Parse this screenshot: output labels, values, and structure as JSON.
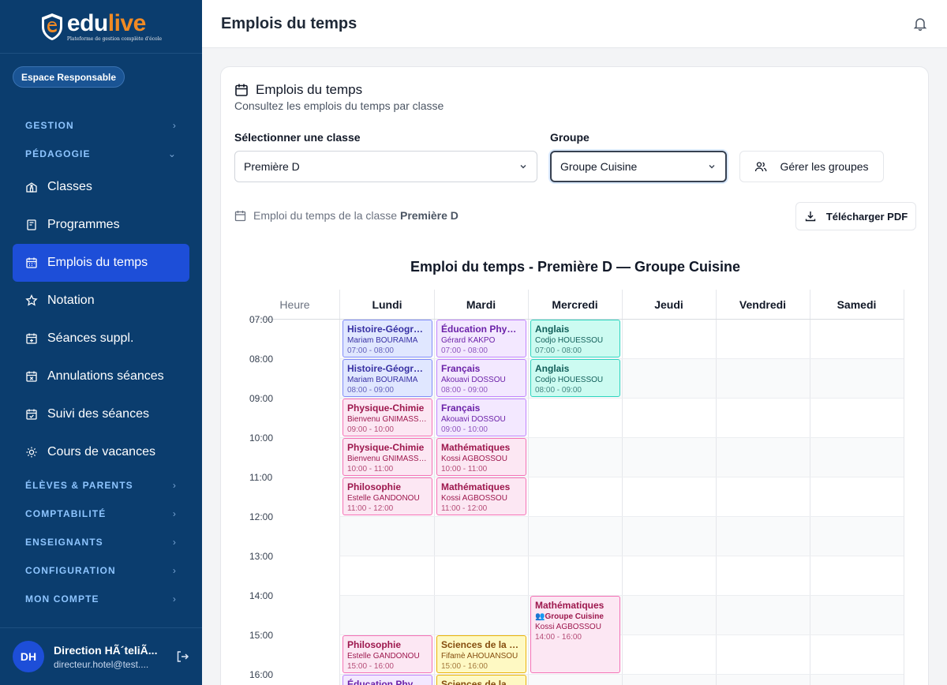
{
  "app": {
    "logo_main": "edu",
    "logo_accent": "live",
    "logo_tagline": "Plateforme de gestion complète d'école",
    "space_badge": "Espace Responsable"
  },
  "sidebar": {
    "sections": [
      {
        "label": "GESTION",
        "items": []
      },
      {
        "label": "PÉDAGOGIE",
        "expanded": true,
        "items": [
          {
            "label": "Classes",
            "icon": "school-icon"
          },
          {
            "label": "Programmes",
            "icon": "book-icon"
          },
          {
            "label": "Emplois du temps",
            "icon": "calendar-icon",
            "active": true
          },
          {
            "label": "Notation",
            "icon": "star-icon"
          },
          {
            "label": "Séances suppl.",
            "icon": "calendar-plus-icon"
          },
          {
            "label": "Annulations séances",
            "icon": "calendar-x-icon"
          },
          {
            "label": "Suivi des séances",
            "icon": "calendar-check-icon"
          },
          {
            "label": "Cours de vacances",
            "icon": "sun-icon"
          }
        ]
      },
      {
        "label": "ÉLÈVES & PARENTS",
        "items": []
      },
      {
        "label": "COMPTABILITÉ",
        "items": []
      },
      {
        "label": "ENSEIGNANTS",
        "items": []
      },
      {
        "label": "CONFIGURATION",
        "items": []
      },
      {
        "label": "MON COMPTE",
        "items": []
      }
    ],
    "user": {
      "initials": "DH",
      "name": "Direction HÃ´teliÃ...",
      "email": "directeur.hotel@test...."
    }
  },
  "header": {
    "title": "Emplois du temps"
  },
  "card": {
    "title": "Emplois du temps",
    "subtitle": "Consultez les emplois du temps par classe",
    "class_label": "Sélectionner une classe",
    "class_value": "Première D",
    "group_label": "Groupe",
    "group_value": "Groupe Cuisine",
    "manage_groups": "Gérer les groupes",
    "caption_prefix": "Emploi du temps de la classe",
    "caption_class": "Première D",
    "download_pdf": "Télécharger PDF",
    "timetable_title": "Emploi du temps - Première D — Groupe Cuisine"
  },
  "timetable": {
    "hour_header": "Heure",
    "days": [
      "Lundi",
      "Mardi",
      "Mercredi",
      "Jeudi",
      "Vendredi",
      "Samedi"
    ],
    "hours": [
      "07:00",
      "08:00",
      "09:00",
      "10:00",
      "11:00",
      "12:00",
      "13:00",
      "14:00",
      "15:00",
      "16:00"
    ],
    "start_hour": 7,
    "colors": {
      "blue": {
        "bg": "#e0e7ff",
        "border": "#818cf8",
        "text": "#3730a3"
      },
      "purple": {
        "bg": "#f3e8ff",
        "border": "#c084fc",
        "text": "#6b21a8"
      },
      "teal": {
        "bg": "#ccfbf1",
        "border": "#2dd4bf",
        "text": "#115e59"
      },
      "pink": {
        "bg": "#fce7f3",
        "border": "#f472b6",
        "text": "#9d174d"
      },
      "yellow": {
        "bg": "#fef9c3",
        "border": "#eab308",
        "text": "#854d0e"
      }
    },
    "events": [
      {
        "day": 0,
        "start": 7,
        "end": 8,
        "subject": "Histoire-Géographie",
        "teacher": "Mariam BOURAIMA",
        "time": "07:00 - 08:00",
        "color": "blue"
      },
      {
        "day": 0,
        "start": 8,
        "end": 9,
        "subject": "Histoire-Géographie",
        "teacher": "Mariam BOURAIMA",
        "time": "08:00 - 09:00",
        "color": "blue"
      },
      {
        "day": 0,
        "start": 9,
        "end": 10,
        "subject": "Physique-Chimie",
        "teacher": "Bienvenu GNIMASSOU",
        "time": "09:00 - 10:00",
        "color": "pink"
      },
      {
        "day": 0,
        "start": 10,
        "end": 11,
        "subject": "Physique-Chimie",
        "teacher": "Bienvenu GNIMASSOU",
        "time": "10:00 - 11:00",
        "color": "pink"
      },
      {
        "day": 0,
        "start": 11,
        "end": 12,
        "subject": "Philosophie",
        "teacher": "Estelle GANDONOU",
        "time": "11:00 - 12:00",
        "color": "pink"
      },
      {
        "day": 0,
        "start": 15,
        "end": 16,
        "subject": "Philosophie",
        "teacher": "Estelle GANDONOU",
        "time": "15:00 - 16:00",
        "color": "pink"
      },
      {
        "day": 0,
        "start": 16,
        "end": 17,
        "subject": "Éducation Physique",
        "teacher": "",
        "time": "",
        "color": "purple"
      },
      {
        "day": 1,
        "start": 7,
        "end": 8,
        "subject": "Éducation Physique",
        "teacher": "Gérard KAKPO",
        "time": "07:00 - 08:00",
        "color": "purple"
      },
      {
        "day": 1,
        "start": 8,
        "end": 9,
        "subject": "Français",
        "teacher": "Akouavi DOSSOU",
        "time": "08:00 - 09:00",
        "color": "purple"
      },
      {
        "day": 1,
        "start": 9,
        "end": 10,
        "subject": "Français",
        "teacher": "Akouavi DOSSOU",
        "time": "09:00 - 10:00",
        "color": "purple"
      },
      {
        "day": 1,
        "start": 10,
        "end": 11,
        "subject": "Mathématiques",
        "teacher": "Kossi AGBOSSOU",
        "time": "10:00 - 11:00",
        "color": "pink"
      },
      {
        "day": 1,
        "start": 11,
        "end": 12,
        "subject": "Mathématiques",
        "teacher": "Kossi AGBOSSOU",
        "time": "11:00 - 12:00",
        "color": "pink"
      },
      {
        "day": 1,
        "start": 15,
        "end": 16,
        "subject": "Sciences de la Vie et de la Terre",
        "teacher": "Fifamè AHOUANSOU",
        "time": "15:00 - 16:00",
        "color": "yellow"
      },
      {
        "day": 1,
        "start": 16,
        "end": 17,
        "subject": "Sciences de la Vie et de la Terre",
        "teacher": "",
        "time": "",
        "color": "yellow"
      },
      {
        "day": 2,
        "start": 7,
        "end": 8,
        "subject": "Anglais",
        "teacher": "Codjo HOUESSOU",
        "time": "07:00 - 08:00",
        "color": "teal"
      },
      {
        "day": 2,
        "start": 8,
        "end": 9,
        "subject": "Anglais",
        "teacher": "Codjo HOUESSOU",
        "time": "08:00 - 09:00",
        "color": "teal"
      },
      {
        "day": 2,
        "start": 14,
        "end": 16,
        "subject": "Mathématiques",
        "group": "👥Groupe Cuisine",
        "teacher": "Kossi AGBOSSOU",
        "time": "14:00 - 16:00",
        "color": "pink"
      }
    ]
  }
}
